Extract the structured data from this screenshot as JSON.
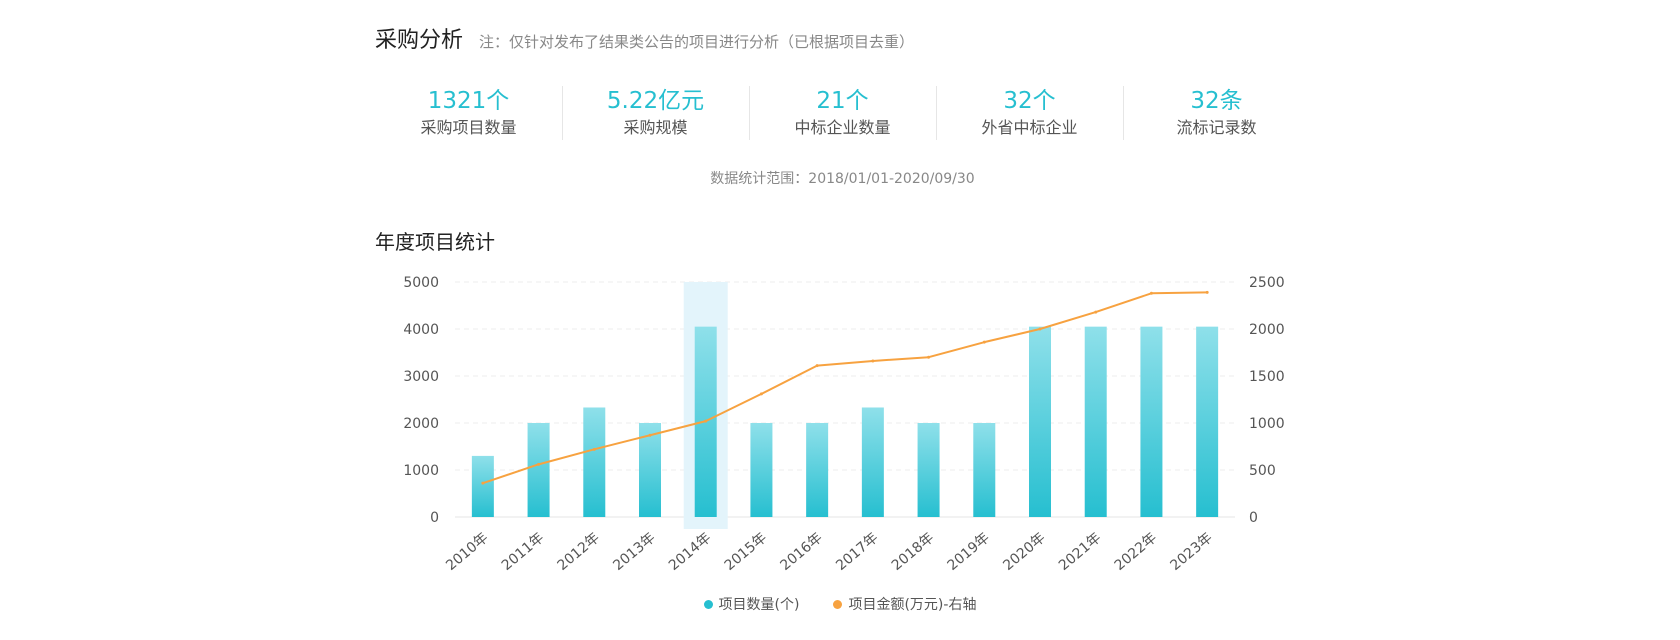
{
  "header": {
    "title": "采购分析",
    "note": "注：仅针对发布了结果类公告的项目进行分析（已根据项目去重）"
  },
  "stats": [
    {
      "value": "1321个",
      "label": "采购项目数量"
    },
    {
      "value": "5.22亿元",
      "label": "采购规模"
    },
    {
      "value": "21个",
      "label": "中标企业数量"
    },
    {
      "value": "32个",
      "label": "外省中标企业"
    },
    {
      "value": "32条",
      "label": "流标记录数"
    }
  ],
  "range_note": "数据统计范围：2018/01/01-2020/09/30",
  "chart_data": {
    "type": "bar",
    "title": "年度项目统计",
    "categories": [
      "2010年",
      "2011年",
      "2012年",
      "2013年",
      "2014年",
      "2015年",
      "2016年",
      "2017年",
      "2018年",
      "2019年",
      "2020年",
      "2021年",
      "2022年",
      "2023年"
    ],
    "series": [
      {
        "name": "项目数量(个)",
        "type": "bar",
        "axis": "left",
        "color": "#26bfd0",
        "values": [
          1300,
          2000,
          2330,
          2000,
          4050,
          2000,
          2000,
          2330,
          2000,
          2000,
          4050,
          4050,
          4050,
          4050
        ]
      },
      {
        "name": "项目金额(万元)-右轴",
        "type": "line",
        "axis": "right",
        "color": "#f7a240",
        "values": [
          360,
          560,
          720,
          870,
          1020,
          1310,
          1610,
          1660,
          1700,
          1860,
          2000,
          2180,
          2380,
          2390
        ]
      }
    ],
    "ylim": [
      0,
      5000
    ],
    "y2lim": [
      0,
      2500
    ],
    "yticks": [
      0,
      1000,
      2000,
      3000,
      4000,
      5000
    ],
    "y2ticks": [
      0,
      500,
      1000,
      1500,
      2000,
      2500
    ],
    "highlight_category": "2014年",
    "grid": true,
    "legend": "bottom-center"
  }
}
